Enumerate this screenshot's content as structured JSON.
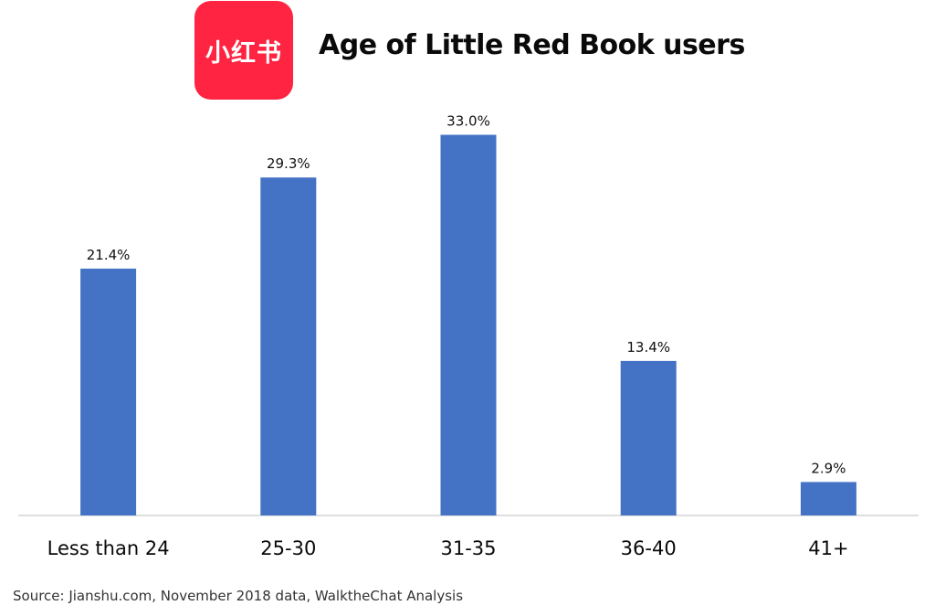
{
  "logo": {
    "text": "小红书",
    "color": "#ff2442"
  },
  "title": "Age of Little Red Book users",
  "source": "Source: Jianshu.com, November 2018 data, WalktheChat Analysis",
  "chart_data": {
    "type": "bar",
    "title": "Age of Little Red Book users",
    "xlabel": "",
    "ylabel": "",
    "categories": [
      "Less than 24",
      "25-30",
      "31-35",
      "36-40",
      "41+"
    ],
    "values": [
      21.4,
      29.3,
      33.0,
      13.4,
      2.9
    ],
    "data_labels": [
      "21.4%",
      "29.3%",
      "33.0%",
      "13.4%",
      "2.9%"
    ],
    "ylim": [
      0,
      37
    ],
    "grid": false,
    "legend": "none",
    "bar_color": "#4472c4"
  }
}
